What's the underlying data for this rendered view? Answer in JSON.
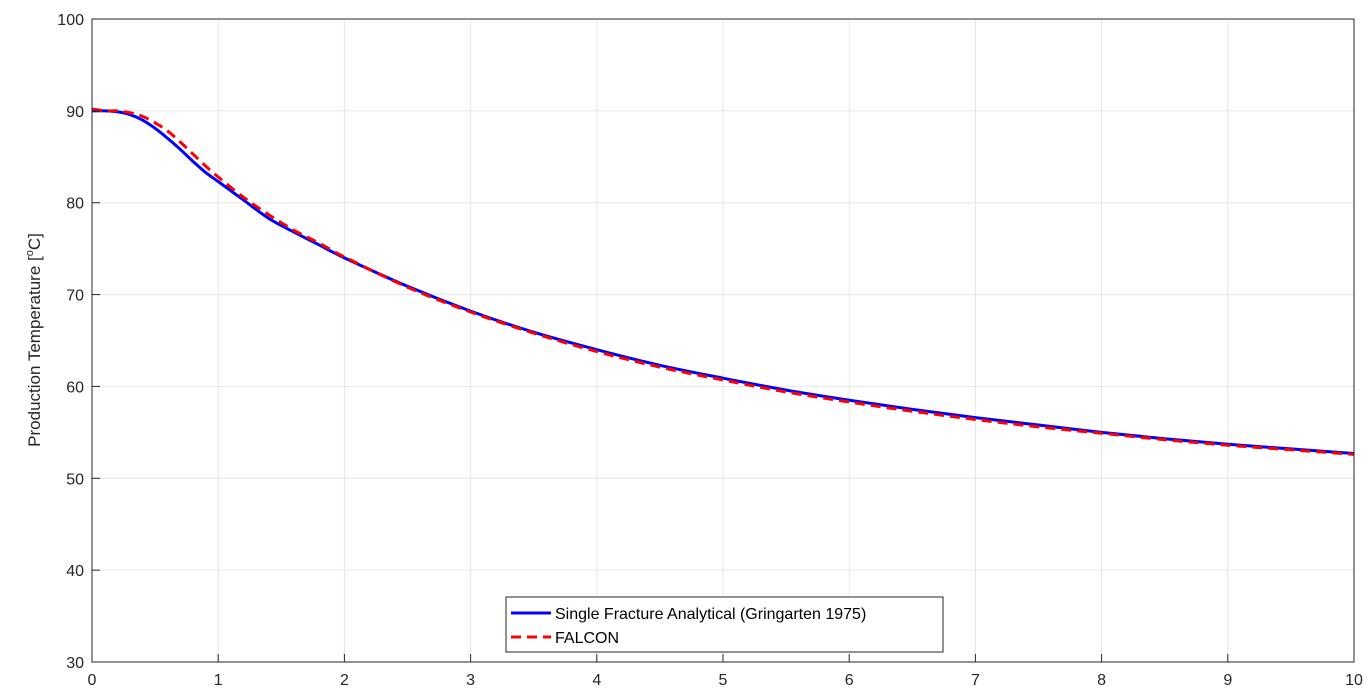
{
  "chart_data": {
    "type": "line",
    "title": "",
    "xlabel": "",
    "ylabel_main": "Production Temperature [",
    "ylabel_degree": "o",
    "ylabel_unit": "C]",
    "xlim": [
      0,
      10
    ],
    "ylim": [
      30,
      100
    ],
    "x_ticks": [
      0,
      1,
      2,
      3,
      4,
      5,
      6,
      7,
      8,
      9,
      10
    ],
    "y_ticks": [
      30,
      40,
      50,
      60,
      70,
      80,
      90,
      100
    ],
    "grid": true,
    "legend_placement": "bottom-center",
    "series": [
      {
        "name": "Single Fracture Analytical (Gringarten 1975)",
        "color": "#0000ff",
        "style": "solid",
        "x": [
          0,
          0.1,
          0.2,
          0.3,
          0.4,
          0.5,
          0.6,
          0.7,
          0.8,
          0.9,
          1.0,
          1.2,
          1.4,
          1.6,
          1.8,
          2.0,
          2.5,
          3.0,
          3.5,
          4.0,
          4.5,
          5.0,
          5.5,
          6.0,
          6.5,
          7.0,
          7.5,
          8.0,
          8.5,
          9.0,
          9.5,
          10.0
        ],
        "y": [
          90.0,
          90.0,
          89.9,
          89.6,
          89.0,
          88.1,
          87.0,
          85.8,
          84.5,
          83.3,
          82.3,
          80.3,
          78.3,
          76.8,
          75.4,
          74.0,
          70.9,
          68.2,
          65.9,
          64.0,
          62.3,
          60.9,
          59.6,
          58.5,
          57.5,
          56.6,
          55.8,
          55.0,
          54.3,
          53.7,
          53.2,
          52.7
        ]
      },
      {
        "name": "FALCON",
        "color": "#ff0000",
        "style": "dashed",
        "x": [
          0,
          0.1,
          0.2,
          0.3,
          0.4,
          0.5,
          0.6,
          0.7,
          0.8,
          0.9,
          1.0,
          1.2,
          1.4,
          1.6,
          1.8,
          2.0,
          2.5,
          3.0,
          3.5,
          4.0,
          4.5,
          5.0,
          5.5,
          6.0,
          6.5,
          7.0,
          7.5,
          8.0,
          8.5,
          9.0,
          9.5,
          10.0
        ],
        "y": [
          90.2,
          90.0,
          90.0,
          89.8,
          89.4,
          88.7,
          87.8,
          86.6,
          85.3,
          84.0,
          82.8,
          80.6,
          78.7,
          77.0,
          75.6,
          74.1,
          70.8,
          68.1,
          65.8,
          63.8,
          62.1,
          60.7,
          59.4,
          58.3,
          57.3,
          56.4,
          55.6,
          54.9,
          54.2,
          53.6,
          53.1,
          52.6
        ]
      }
    ]
  }
}
